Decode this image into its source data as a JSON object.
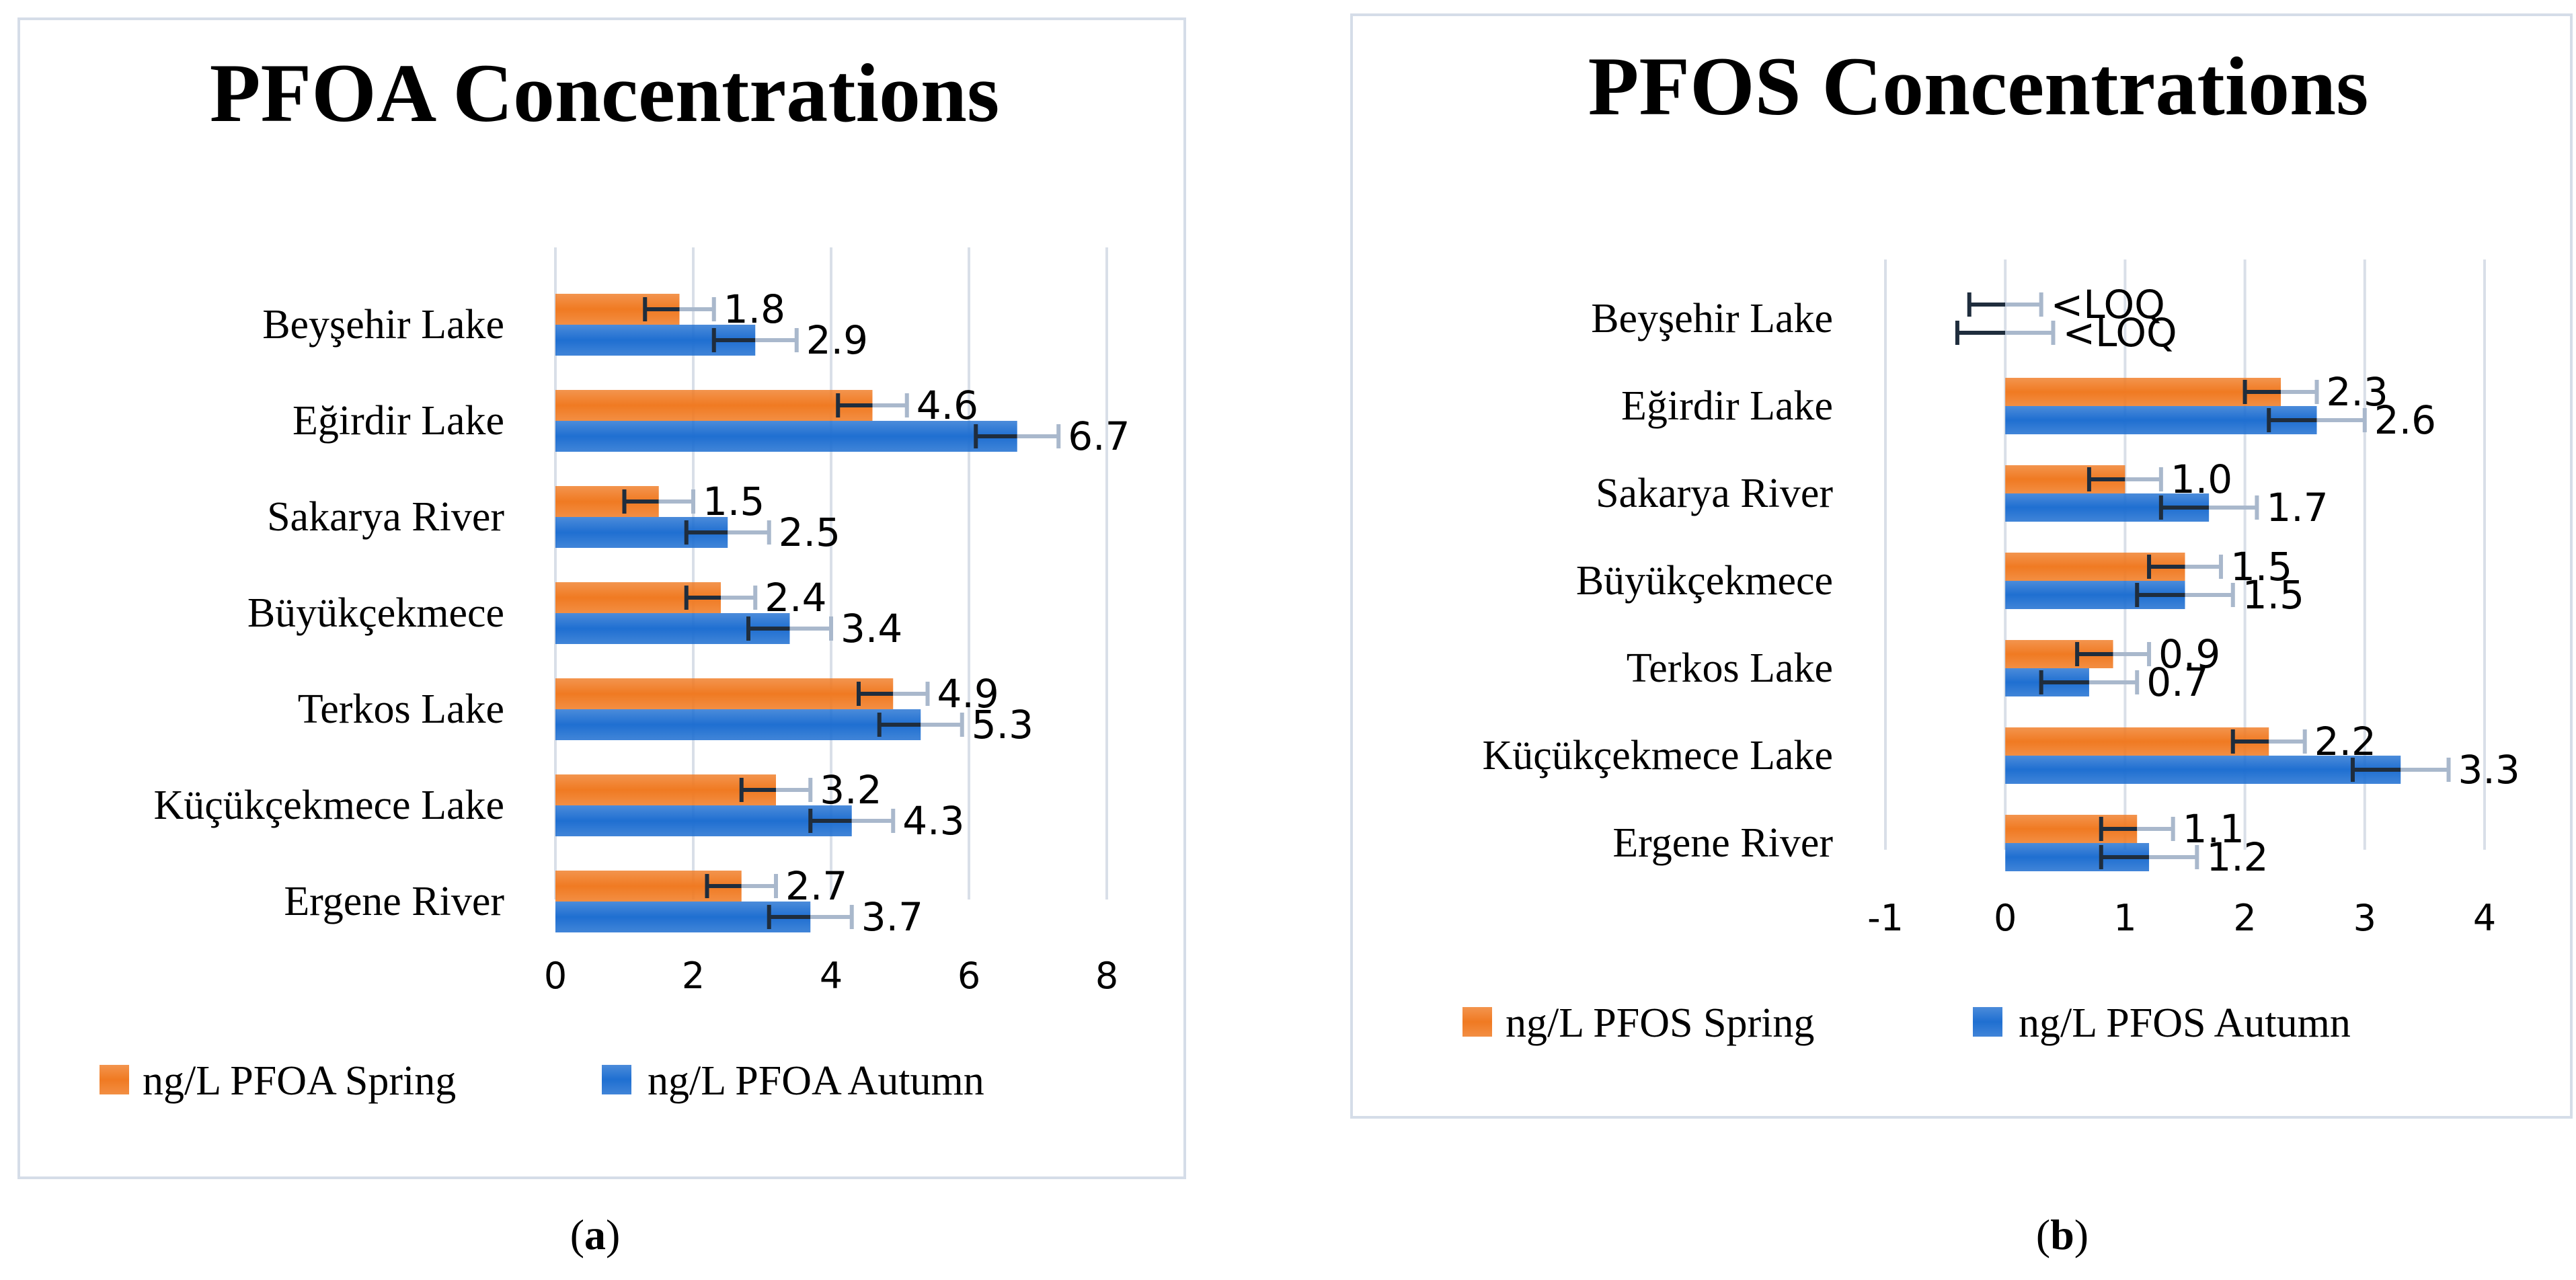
{
  "captions": {
    "a_open": "(",
    "a_letter": "a",
    "a_close": ")",
    "b_open": "(",
    "b_letter": "b",
    "b_close": ")"
  },
  "chart_data": [
    {
      "id": "a",
      "type": "bar",
      "orientation": "horizontal",
      "title": "PFOA Concentrations",
      "categories": [
        "Beyşehir Lake",
        "Eğirdir Lake",
        "Sakarya River",
        "Büyükçekmece",
        "Terkos Lake",
        "Küçükçekmece Lake",
        "Ergene River"
      ],
      "series": [
        {
          "name": "ng/L PFOA Spring",
          "color": "#f07a22",
          "values": [
            1.8,
            4.6,
            1.5,
            2.4,
            4.9,
            3.2,
            2.7
          ],
          "labels": [
            "1.8",
            "4.6",
            "1.5",
            "2.4",
            "4.9",
            "3.2",
            "2.7"
          ],
          "error_minus": [
            0.5,
            0.5,
            0.5,
            0.5,
            0.5,
            0.5,
            0.5
          ],
          "error_plus": [
            0.5,
            0.5,
            0.5,
            0.5,
            0.5,
            0.5,
            0.5
          ]
        },
        {
          "name": "ng/L PFOA Autumn",
          "color": "#1f6fd1",
          "values": [
            2.9,
            6.7,
            2.5,
            3.4,
            5.3,
            4.3,
            3.7
          ],
          "labels": [
            "2.9",
            "6.7",
            "2.5",
            "3.4",
            "5.3",
            "4.3",
            "3.7"
          ],
          "error_minus": [
            0.6,
            0.6,
            0.6,
            0.6,
            0.6,
            0.6,
            0.6
          ],
          "error_plus": [
            0.6,
            0.6,
            0.6,
            0.6,
            0.6,
            0.6,
            0.6
          ]
        }
      ],
      "xlim": [
        0,
        8
      ],
      "xticks": [
        0,
        2,
        4,
        6,
        8
      ],
      "xtick_labels": [
        "0",
        "2",
        "4",
        "6",
        "8"
      ],
      "grid": true,
      "legend": "bottom"
    },
    {
      "id": "b",
      "type": "bar",
      "orientation": "horizontal",
      "title": "PFOS Concentrations",
      "categories": [
        "Beyşehir Lake",
        "Eğirdir Lake",
        "Sakarya River",
        "Büyükçekmece",
        "Terkos Lake",
        "Küçükçekmece Lake",
        "Ergene River"
      ],
      "series": [
        {
          "name": "ng/L PFOS Spring",
          "color": "#f07a22",
          "values": [
            0,
            2.3,
            1.0,
            1.5,
            0.9,
            2.2,
            1.1
          ],
          "labels": [
            "<LOQ",
            "2.3",
            "1.0",
            "1.5",
            "0.9",
            "2.2",
            "1.1"
          ],
          "error_minus": [
            0.3,
            0.3,
            0.3,
            0.3,
            0.3,
            0.3,
            0.3
          ],
          "error_plus": [
            0.3,
            0.3,
            0.3,
            0.3,
            0.3,
            0.3,
            0.3
          ]
        },
        {
          "name": "ng/L PFOS Autumn",
          "color": "#1f6fd1",
          "values": [
            0,
            2.6,
            1.7,
            1.5,
            0.7,
            3.3,
            1.2
          ],
          "labels": [
            "<LOQ",
            "2.6",
            "1.7",
            "1.5",
            "0.7",
            "3.3",
            "1.2"
          ],
          "error_minus": [
            0.4,
            0.4,
            0.4,
            0.4,
            0.4,
            0.4,
            0.4
          ],
          "error_plus": [
            0.4,
            0.4,
            0.4,
            0.4,
            0.4,
            0.4,
            0.4
          ]
        }
      ],
      "xlim": [
        -1,
        4
      ],
      "xticks": [
        -1,
        0,
        1,
        2,
        3,
        4
      ],
      "xtick_labels": [
        "-1",
        "0",
        "1",
        "2",
        "3",
        "4"
      ],
      "grid": true,
      "legend": "bottom"
    }
  ]
}
